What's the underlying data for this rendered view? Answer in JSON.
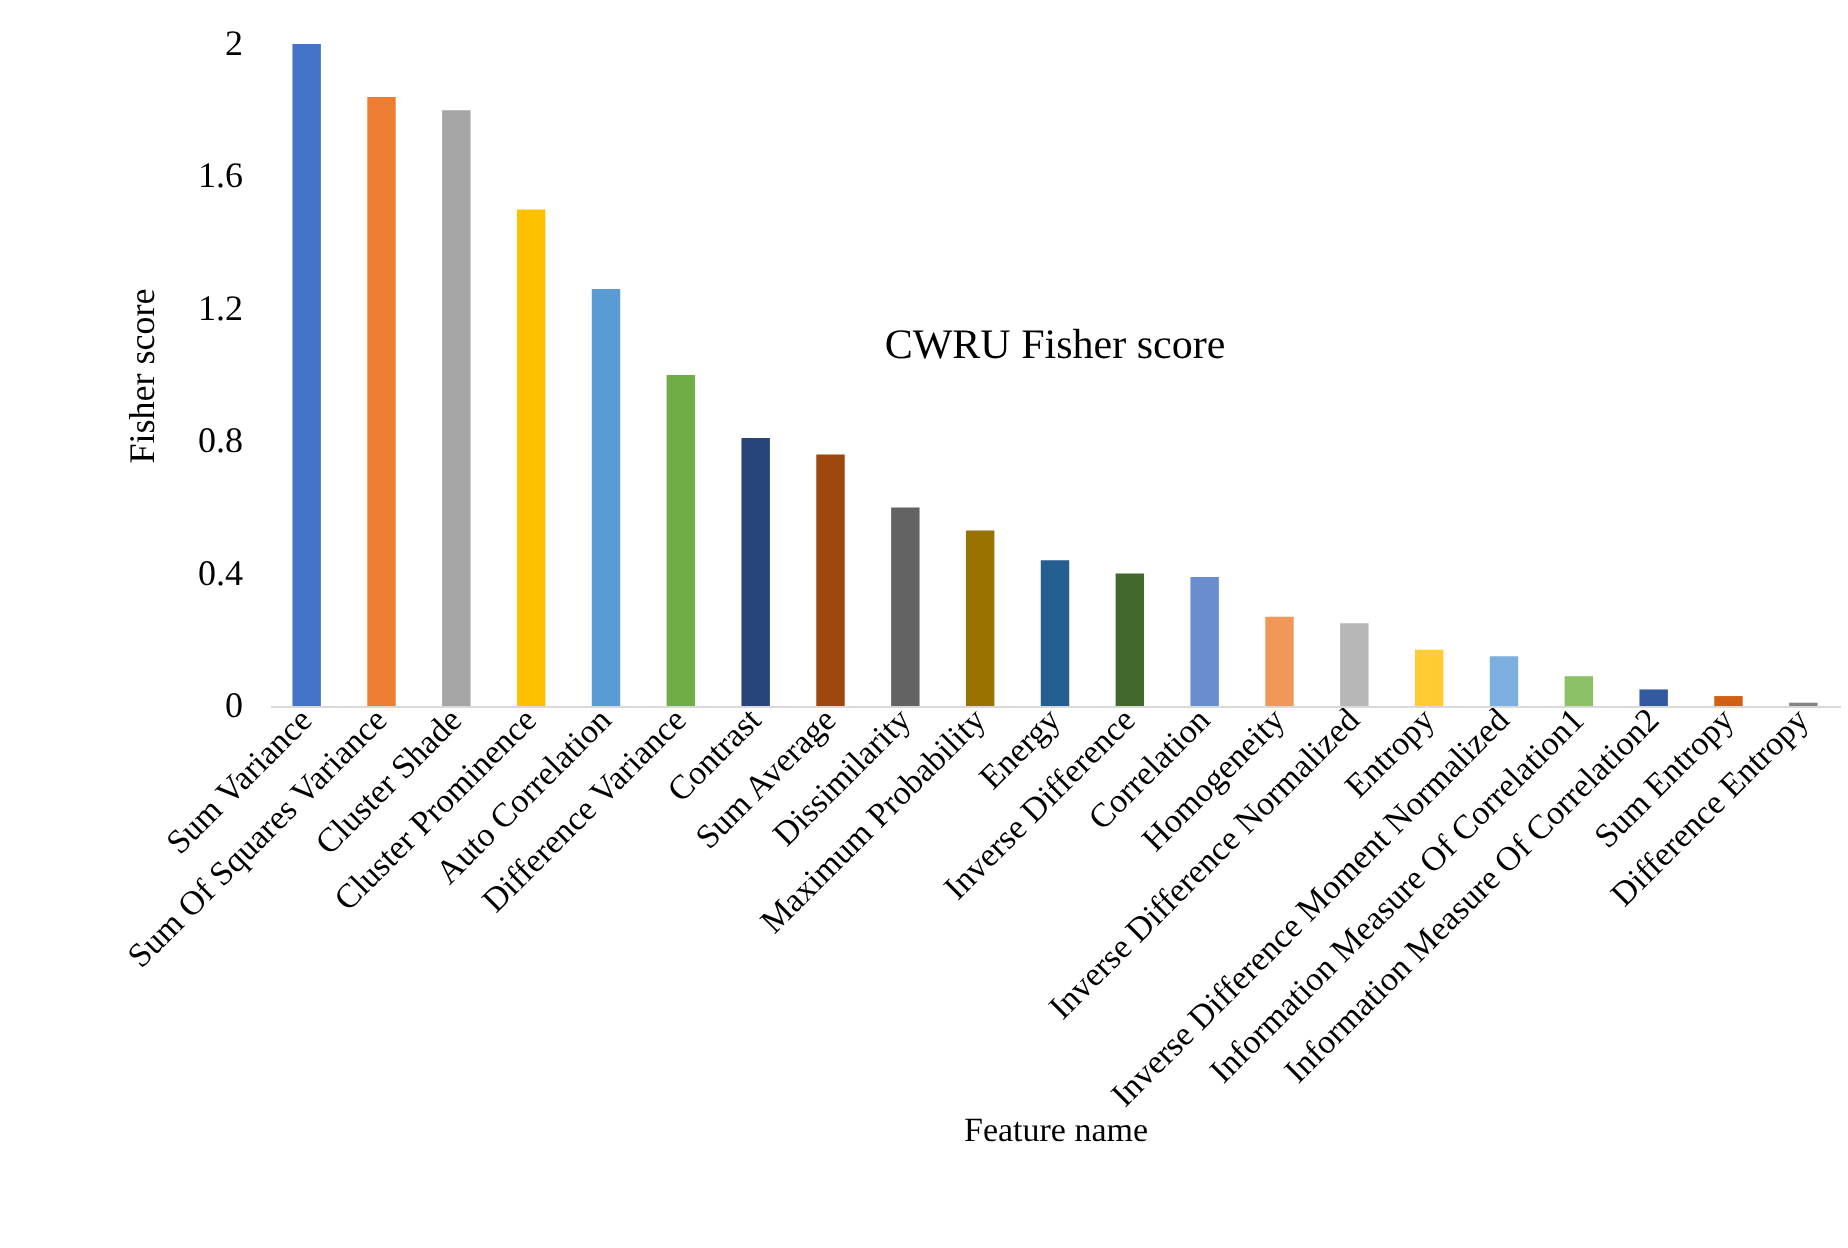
{
  "chart_data": {
    "type": "bar",
    "title": "CWRU Fisher score",
    "xlabel": "Feature name",
    "ylabel": "Fisher score",
    "categories": [
      "Sum Variance",
      "Sum Of Squares Variance",
      "Cluster Shade",
      "Cluster Prominence",
      "Auto Correlation",
      "Difference Variance",
      "Contrast",
      "Sum Average",
      "Dissimilarity",
      "Maximum Probability",
      "Energy",
      "Inverse Difference",
      "Correlation",
      "Homogeneity",
      "Inverse Difference Normalized",
      "Entropy",
      "Inverse Difference Moment Normalized",
      "Information Measure Of Correlation1",
      "Information Measure Of Correlation2",
      "Sum Entropy",
      "Difference Entropy"
    ],
    "values": [
      2.0,
      1.84,
      1.8,
      1.5,
      1.26,
      1.0,
      0.81,
      0.76,
      0.6,
      0.53,
      0.44,
      0.4,
      0.39,
      0.27,
      0.25,
      0.17,
      0.15,
      0.09,
      0.05,
      0.03,
      0.01
    ],
    "colors": [
      "#4472c4",
      "#ed7d31",
      "#a5a5a5",
      "#ffc000",
      "#5b9bd5",
      "#70ad47",
      "#264478",
      "#9e480e",
      "#636363",
      "#997300",
      "#255e91",
      "#43682b",
      "#698ed0",
      "#f1975a",
      "#b7b7b7",
      "#ffcd33",
      "#7cafdd",
      "#8cc168",
      "#335aa1",
      "#d26012",
      "#848484"
    ],
    "ylim": [
      0,
      2
    ],
    "yticks": [
      0,
      0.4,
      0.8,
      1.2,
      1.6,
      2
    ],
    "grid": false,
    "legend": false
  }
}
